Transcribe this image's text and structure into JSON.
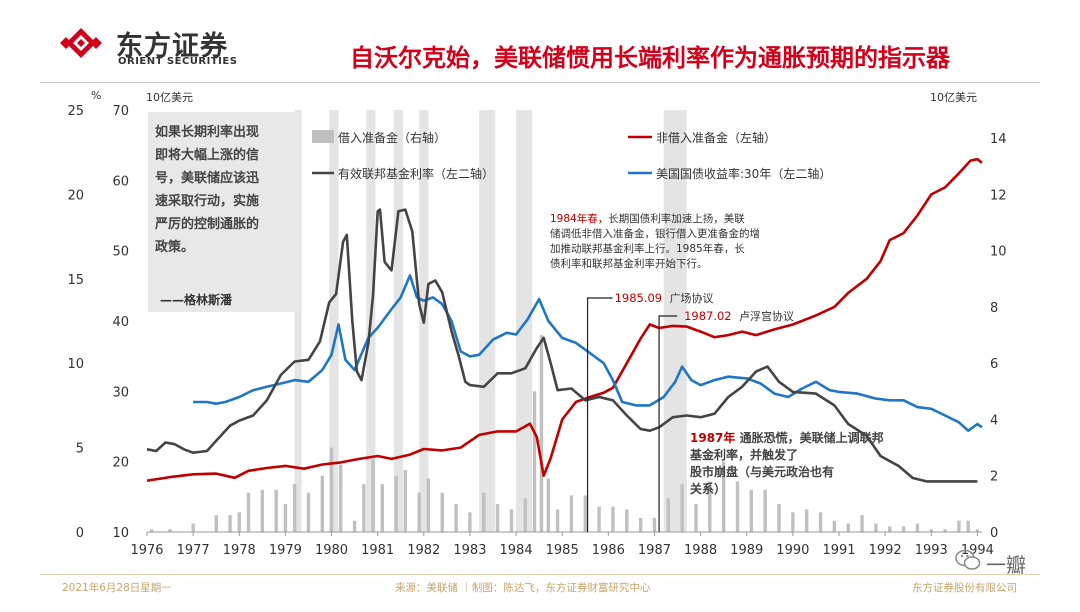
{
  "header": {
    "brand_cn": "东方证券",
    "brand_en": "ORIENT SECURITIES",
    "headline": "自沃尔克始，美联储惯用长端利率作为通胀预期的指示器"
  },
  "footer": {
    "date": "2021年6月28日星期一",
    "source": "来源：美联储 ｜制图：陈达飞，东方证券财富研究中心",
    "company": "东方证券股份有限公司",
    "watermark": "一瓣"
  },
  "chart_data": {
    "type": "line",
    "units": {
      "left_outer": "%",
      "left_inner": "10亿美元",
      "right": "10亿美元"
    },
    "axes": {
      "left_outer": {
        "min": 0,
        "max": 25,
        "ticks": [
          "0",
          "5",
          "10",
          "15",
          "20",
          "25"
        ],
        "series": [
          "有效联邦基金利率（左二轴）",
          "美国国债收益率:30年（左二轴）"
        ]
      },
      "left_inner": {
        "min": 10,
        "max": 70,
        "ticks": [
          "10",
          "20",
          "30",
          "40",
          "50",
          "60",
          "70"
        ],
        "series": [
          "非借入准备金（左轴）"
        ]
      },
      "right": {
        "min": 0,
        "max": 15,
        "ticks": [
          "0",
          "2",
          "4",
          "6",
          "8",
          "10",
          "12",
          "14"
        ],
        "series": [
          "借入准备金（右轴）"
        ]
      }
    },
    "x": {
      "min": 1976,
      "max": 1994.1,
      "ticks": [
        "1976",
        "1977",
        "1978",
        "1979",
        "1980",
        "1981",
        "1982",
        "1983",
        "1984",
        "1985",
        "1986",
        "1987",
        "1988",
        "1989",
        "1990",
        "1991",
        "1992",
        "1993",
        "1994"
      ]
    },
    "legend": [
      "借入准备金（右轴）",
      "非借入准备金（左轴）",
      "有效联邦基金利率（左二轴）",
      "美国国债收益率:30年（左二轴）"
    ],
    "colors": {
      "fed_funds": "#444444",
      "treasury_30y": "#1f77c4",
      "nonborrowed": "#c00000",
      "borrowed": "#c0c0c0",
      "shade": "#e4e4e4"
    },
    "shaded_periods": [
      [
        1979.2,
        1979.35
      ],
      [
        1979.95,
        1980.15
      ],
      [
        1980.75,
        1980.95
      ],
      [
        1981.35,
        1981.55
      ],
      [
        1981.9,
        1982.1
      ],
      [
        1983.2,
        1983.55
      ],
      [
        1984.0,
        1984.35
      ],
      [
        1987.2,
        1987.7
      ]
    ],
    "series": {
      "fed_funds": [
        [
          1976,
          4.9
        ],
        [
          1976.2,
          4.8
        ],
        [
          1976.4,
          5.3
        ],
        [
          1976.6,
          5.2
        ],
        [
          1976.8,
          4.9
        ],
        [
          1977,
          4.7
        ],
        [
          1977.3,
          4.8
        ],
        [
          1977.5,
          5.4
        ],
        [
          1977.8,
          6.3
        ],
        [
          1978,
          6.6
        ],
        [
          1978.3,
          6.9
        ],
        [
          1978.6,
          7.8
        ],
        [
          1978.9,
          9.3
        ],
        [
          1979.2,
          10.1
        ],
        [
          1979.5,
          10.2
        ],
        [
          1979.75,
          11.3
        ],
        [
          1979.95,
          13.6
        ],
        [
          1980.1,
          14.1
        ],
        [
          1980.25,
          17.2
        ],
        [
          1980.33,
          17.6
        ],
        [
          1980.45,
          12.5
        ],
        [
          1980.55,
          9.5
        ],
        [
          1980.65,
          9.0
        ],
        [
          1980.8,
          11.2
        ],
        [
          1980.9,
          14.0
        ],
        [
          1981.0,
          19.0
        ],
        [
          1981.05,
          19.1
        ],
        [
          1981.15,
          16.0
        ],
        [
          1981.3,
          15.5
        ],
        [
          1981.45,
          19.0
        ],
        [
          1981.6,
          19.1
        ],
        [
          1981.75,
          17.8
        ],
        [
          1981.9,
          13.5
        ],
        [
          1982.0,
          12.4
        ],
        [
          1982.1,
          14.7
        ],
        [
          1982.25,
          14.9
        ],
        [
          1982.4,
          14.2
        ],
        [
          1982.6,
          11.9
        ],
        [
          1982.75,
          10.5
        ],
        [
          1982.9,
          8.9
        ],
        [
          1983,
          8.7
        ],
        [
          1983.3,
          8.6
        ],
        [
          1983.6,
          9.4
        ],
        [
          1983.9,
          9.4
        ],
        [
          1984.2,
          9.7
        ],
        [
          1984.45,
          10.9
        ],
        [
          1984.6,
          11.5
        ],
        [
          1984.75,
          10.0
        ],
        [
          1984.9,
          8.4
        ],
        [
          1985.2,
          8.5
        ],
        [
          1985.5,
          7.8
        ],
        [
          1985.8,
          8.0
        ],
        [
          1986.1,
          7.8
        ],
        [
          1986.4,
          6.9
        ],
        [
          1986.7,
          6.1
        ],
        [
          1986.9,
          6.0
        ],
        [
          1987.1,
          6.2
        ],
        [
          1987.4,
          6.8
        ],
        [
          1987.7,
          6.9
        ],
        [
          1988.0,
          6.8
        ],
        [
          1988.3,
          7.0
        ],
        [
          1988.6,
          8.0
        ],
        [
          1988.9,
          8.6
        ],
        [
          1989.2,
          9.5
        ],
        [
          1989.45,
          9.8
        ],
        [
          1989.7,
          8.9
        ],
        [
          1990.0,
          8.3
        ],
        [
          1990.5,
          8.2
        ],
        [
          1990.9,
          7.5
        ],
        [
          1991.2,
          6.4
        ],
        [
          1991.6,
          5.7
        ],
        [
          1991.9,
          4.5
        ],
        [
          1992.3,
          3.9
        ],
        [
          1992.6,
          3.2
        ],
        [
          1992.9,
          3.0
        ],
        [
          1993.3,
          3.0
        ],
        [
          1993.7,
          3.0
        ],
        [
          1994.0,
          3.0
        ]
      ],
      "treasury_30y": [
        [
          1977.0,
          7.7
        ],
        [
          1977.3,
          7.7
        ],
        [
          1977.5,
          7.6
        ],
        [
          1977.7,
          7.7
        ],
        [
          1978.0,
          8.0
        ],
        [
          1978.3,
          8.4
        ],
        [
          1978.6,
          8.6
        ],
        [
          1978.9,
          8.8
        ],
        [
          1979.2,
          9.0
        ],
        [
          1979.5,
          8.9
        ],
        [
          1979.8,
          9.6
        ],
        [
          1980.0,
          10.5
        ],
        [
          1980.15,
          12.3
        ],
        [
          1980.3,
          10.2
        ],
        [
          1980.5,
          9.6
        ],
        [
          1980.8,
          11.5
        ],
        [
          1981.0,
          12.1
        ],
        [
          1981.3,
          13.2
        ],
        [
          1981.5,
          13.9
        ],
        [
          1981.7,
          15.2
        ],
        [
          1981.85,
          13.9
        ],
        [
          1982.0,
          13.7
        ],
        [
          1982.2,
          13.9
        ],
        [
          1982.4,
          13.5
        ],
        [
          1982.6,
          12.5
        ],
        [
          1982.8,
          10.7
        ],
        [
          1983.0,
          10.4
        ],
        [
          1983.2,
          10.5
        ],
        [
          1983.5,
          11.4
        ],
        [
          1983.8,
          11.8
        ],
        [
          1984.0,
          11.7
        ],
        [
          1984.25,
          12.6
        ],
        [
          1984.5,
          13.8
        ],
        [
          1984.7,
          12.5
        ],
        [
          1985.0,
          11.5
        ],
        [
          1985.3,
          11.2
        ],
        [
          1985.6,
          10.6
        ],
        [
          1985.9,
          10.0
        ],
        [
          1986.1,
          9.0
        ],
        [
          1986.3,
          7.7
        ],
        [
          1986.6,
          7.5
        ],
        [
          1986.9,
          7.5
        ],
        [
          1987.2,
          8.0
        ],
        [
          1987.45,
          8.9
        ],
        [
          1987.6,
          9.8
        ],
        [
          1987.8,
          9.0
        ],
        [
          1988.0,
          8.7
        ],
        [
          1988.3,
          9.0
        ],
        [
          1988.6,
          9.2
        ],
        [
          1989.0,
          9.1
        ],
        [
          1989.3,
          8.8
        ],
        [
          1989.6,
          8.2
        ],
        [
          1989.9,
          8.0
        ],
        [
          1990.2,
          8.5
        ],
        [
          1990.5,
          8.9
        ],
        [
          1990.8,
          8.4
        ],
        [
          1991.0,
          8.3
        ],
        [
          1991.4,
          8.2
        ],
        [
          1991.8,
          7.9
        ],
        [
          1992.1,
          7.8
        ],
        [
          1992.4,
          7.8
        ],
        [
          1992.7,
          7.4
        ],
        [
          1993.0,
          7.3
        ],
        [
          1993.3,
          6.9
        ],
        [
          1993.6,
          6.5
        ],
        [
          1993.8,
          6.0
        ],
        [
          1994.0,
          6.4
        ],
        [
          1994.1,
          6.2
        ]
      ],
      "nonborrowed": [
        [
          1976,
          17.3
        ],
        [
          1976.5,
          17.8
        ],
        [
          1977,
          18.2
        ],
        [
          1977.5,
          18.3
        ],
        [
          1977.9,
          17.7
        ],
        [
          1978.2,
          18.7
        ],
        [
          1978.6,
          19.1
        ],
        [
          1979.0,
          19.4
        ],
        [
          1979.4,
          19.0
        ],
        [
          1979.8,
          19.6
        ],
        [
          1980.2,
          19.9
        ],
        [
          1980.6,
          20.4
        ],
        [
          1981.0,
          20.8
        ],
        [
          1981.3,
          20.4
        ],
        [
          1981.7,
          21.0
        ],
        [
          1982.0,
          21.8
        ],
        [
          1982.4,
          21.6
        ],
        [
          1982.8,
          22.0
        ],
        [
          1983.2,
          23.8
        ],
        [
          1983.6,
          24.3
        ],
        [
          1984.0,
          24.3
        ],
        [
          1984.3,
          25.4
        ],
        [
          1984.45,
          23.5
        ],
        [
          1984.6,
          18.0
        ],
        [
          1984.75,
          20.5
        ],
        [
          1985.0,
          26.0
        ],
        [
          1985.3,
          28.5
        ],
        [
          1985.6,
          29.2
        ],
        [
          1985.9,
          29.8
        ],
        [
          1986.1,
          30.5
        ],
        [
          1986.4,
          34.0
        ],
        [
          1986.7,
          37.5
        ],
        [
          1986.9,
          39.5
        ],
        [
          1987.1,
          39.0
        ],
        [
          1987.4,
          39.3
        ],
        [
          1987.7,
          39.2
        ],
        [
          1988.0,
          38.5
        ],
        [
          1988.3,
          37.7
        ],
        [
          1988.6,
          38.0
        ],
        [
          1988.9,
          38.5
        ],
        [
          1989.2,
          38.0
        ],
        [
          1989.6,
          38.8
        ],
        [
          1990.0,
          39.5
        ],
        [
          1990.5,
          40.8
        ],
        [
          1990.9,
          42.0
        ],
        [
          1991.2,
          44.0
        ],
        [
          1991.6,
          46.0
        ],
        [
          1991.9,
          48.5
        ],
        [
          1992.1,
          51.5
        ],
        [
          1992.4,
          52.5
        ],
        [
          1992.7,
          55.0
        ],
        [
          1993.0,
          58.0
        ],
        [
          1993.3,
          59.0
        ],
        [
          1993.6,
          61.0
        ],
        [
          1993.85,
          62.8
        ],
        [
          1994.0,
          63.0
        ],
        [
          1994.1,
          62.5
        ]
      ],
      "borrowed": [
        [
          1976.1,
          0.1
        ],
        [
          1976.5,
          0.1
        ],
        [
          1977.0,
          0.3
        ],
        [
          1977.5,
          0.6
        ],
        [
          1977.8,
          0.6
        ],
        [
          1978.0,
          0.7
        ],
        [
          1978.2,
          1.4
        ],
        [
          1978.5,
          1.5
        ],
        [
          1978.8,
          1.5
        ],
        [
          1979.0,
          1.0
        ],
        [
          1979.2,
          1.7
        ],
        [
          1979.5,
          1.4
        ],
        [
          1979.8,
          2.0
        ],
        [
          1980.0,
          3.0
        ],
        [
          1980.2,
          2.4
        ],
        [
          1980.5,
          0.4
        ],
        [
          1980.7,
          1.7
        ],
        [
          1980.9,
          2.6
        ],
        [
          1981.1,
          1.7
        ],
        [
          1981.4,
          2.0
        ],
        [
          1981.6,
          2.2
        ],
        [
          1981.9,
          1.4
        ],
        [
          1982.1,
          1.9
        ],
        [
          1982.4,
          1.4
        ],
        [
          1982.7,
          1.0
        ],
        [
          1983.0,
          0.7
        ],
        [
          1983.3,
          1.4
        ],
        [
          1983.6,
          1.0
        ],
        [
          1983.9,
          0.8
        ],
        [
          1984.2,
          1.2
        ],
        [
          1984.4,
          5.0
        ],
        [
          1984.55,
          7.0
        ],
        [
          1984.7,
          1.9
        ],
        [
          1984.9,
          0.8
        ],
        [
          1985.2,
          1.3
        ],
        [
          1985.5,
          1.3
        ],
        [
          1985.8,
          0.9
        ],
        [
          1986.1,
          0.9
        ],
        [
          1986.4,
          0.8
        ],
        [
          1986.7,
          0.5
        ],
        [
          1987.0,
          0.5
        ],
        [
          1987.3,
          1.2
        ],
        [
          1987.6,
          1.7
        ],
        [
          1987.9,
          1.0
        ],
        [
          1988.2,
          1.8
        ],
        [
          1988.5,
          2.5
        ],
        [
          1988.8,
          1.8
        ],
        [
          1989.1,
          1.5
        ],
        [
          1989.4,
          1.5
        ],
        [
          1989.7,
          1.0
        ],
        [
          1990.0,
          0.7
        ],
        [
          1990.3,
          0.8
        ],
        [
          1990.6,
          0.7
        ],
        [
          1990.9,
          0.4
        ],
        [
          1991.2,
          0.3
        ],
        [
          1991.5,
          0.6
        ],
        [
          1991.8,
          0.3
        ],
        [
          1992.1,
          0.2
        ],
        [
          1992.4,
          0.2
        ],
        [
          1992.7,
          0.3
        ],
        [
          1993.0,
          0.1
        ],
        [
          1993.3,
          0.1
        ],
        [
          1993.6,
          0.4
        ],
        [
          1993.8,
          0.4
        ],
        [
          1994.0,
          0.1
        ]
      ]
    },
    "annotations": {
      "greenspan": {
        "text": "如果长期利率出现即将大幅上涨的信号，美联储应该迅速采取行动，实施严厉的控制通胀的政策。",
        "attribution": "——格林斯潘"
      },
      "y1984": {
        "highlight": "1984年春，",
        "text": "长期国债利率加速上扬，美联储调低非借入准备金，银行借入更准备金的增加推动联邦基金利率上行。1985年春，长债利率和联邦基金利率开始下行。"
      },
      "plaza": {
        "date": "1985.09",
        "label": "广场协议",
        "x": 1985.55
      },
      "louvre": {
        "date": "1987.02",
        "label": "卢浮宫协议",
        "x": 1987.1
      },
      "y1987": {
        "highlight": "1987年",
        "text": "通胀恐慌，美联储上调联邦基金利率，并触发了股市崩盘（与美元政治也有关系）"
      }
    }
  }
}
